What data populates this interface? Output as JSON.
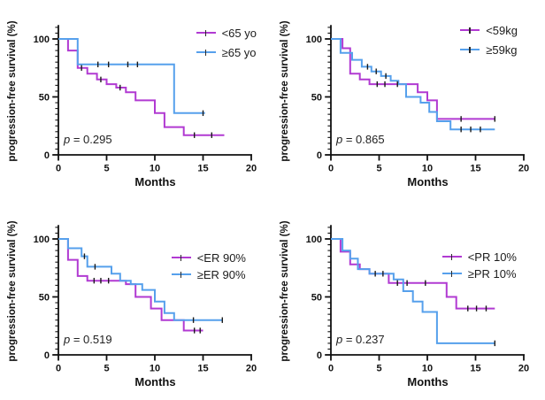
{
  "figure": {
    "description": "2x2 grid of Kaplan-Meier progression-free survival curves",
    "shared_xlabel": "Months",
    "shared_ylabel": "progression-free survival (%)",
    "colors": {
      "group_below": "#b13ad2",
      "group_above": "#56a0ec",
      "axis": "#111111"
    }
  },
  "chart_data": [
    {
      "type": "line",
      "subtype": "kaplan_meier_step",
      "group": "Age",
      "xlabel": "Months",
      "ylabel": "progression-free survival (%)",
      "p_label": "p = 0.295",
      "xlim": [
        0,
        20
      ],
      "ylim": [
        0,
        100
      ],
      "xticks": [
        0,
        5,
        10,
        15,
        20
      ],
      "yticks": [
        0,
        50,
        100
      ],
      "legend": [
        {
          "label": "<65 yo",
          "color": "#b13ad2"
        },
        {
          "label": "≥65 yo",
          "color": "#56a0ec"
        }
      ],
      "series": [
        {
          "name": "<65 yo",
          "color": "#b13ad2",
          "end_x": 17.2,
          "steps": [
            [
              0,
              100
            ],
            [
              1,
              90
            ],
            [
              2,
              75
            ],
            [
              3,
              70
            ],
            [
              4,
              65
            ],
            [
              5,
              61
            ],
            [
              6,
              58
            ],
            [
              7,
              54
            ],
            [
              8,
              47
            ],
            [
              10,
              36
            ],
            [
              11,
              24
            ],
            [
              13,
              17
            ]
          ],
          "censor_marks": [
            [
              2.4,
              75
            ],
            [
              4.4,
              65
            ],
            [
              6.4,
              58
            ],
            [
              14.1,
              17
            ],
            [
              15.9,
              17
            ]
          ]
        },
        {
          "name": "≥65 yo",
          "color": "#56a0ec",
          "end_x": 15.2,
          "steps": [
            [
              0,
              100
            ],
            [
              2,
              78
            ],
            [
              12,
              36
            ]
          ],
          "censor_marks": [
            [
              4.1,
              78
            ],
            [
              5.2,
              78
            ],
            [
              7.2,
              78
            ],
            [
              8.2,
              78
            ],
            [
              15,
              36
            ]
          ]
        }
      ]
    },
    {
      "type": "line",
      "subtype": "kaplan_meier_step",
      "group": "Weight",
      "xlabel": "Months",
      "ylabel": "progression-free survival (%)",
      "p_label": "p = 0.865",
      "xlim": [
        0,
        20
      ],
      "ylim": [
        0,
        100
      ],
      "xticks": [
        0,
        5,
        10,
        15,
        20
      ],
      "yticks": [
        0,
        50,
        100
      ],
      "legend": [
        {
          "label": "<59kg",
          "color": "#b13ad2"
        },
        {
          "label": "≥59kg",
          "color": "#56a0ec"
        }
      ],
      "series": [
        {
          "name": "<59kg",
          "color": "#b13ad2",
          "end_x": 17,
          "steps": [
            [
              0,
              100
            ],
            [
              1.2,
              92
            ],
            [
              2,
              70
            ],
            [
              3,
              65
            ],
            [
              4,
              61
            ],
            [
              9,
              54
            ],
            [
              10,
              47
            ],
            [
              11,
              31
            ]
          ],
          "censor_marks": [
            [
              4.8,
              61
            ],
            [
              5.6,
              61
            ],
            [
              6.9,
              61
            ],
            [
              13.5,
              31
            ],
            [
              17,
              31
            ]
          ]
        },
        {
          "name": "≥59kg",
          "color": "#56a0ec",
          "end_x": 17,
          "steps": [
            [
              0,
              100
            ],
            [
              1,
              88
            ],
            [
              2.2,
              82
            ],
            [
              3.2,
              76
            ],
            [
              4.2,
              72
            ],
            [
              5.2,
              68
            ],
            [
              6.2,
              64
            ],
            [
              7,
              61
            ],
            [
              7.8,
              50
            ],
            [
              9.3,
              45
            ],
            [
              10.2,
              37
            ],
            [
              11,
              29
            ],
            [
              12.4,
              22
            ]
          ],
          "censor_marks": [
            [
              3.8,
              76
            ],
            [
              4.7,
              72
            ],
            [
              5.7,
              68
            ],
            [
              13.5,
              22
            ],
            [
              14.5,
              22
            ],
            [
              15.5,
              22
            ]
          ]
        }
      ]
    },
    {
      "type": "line",
      "subtype": "kaplan_meier_step",
      "group": "ER",
      "xlabel": "Months",
      "ylabel": "progression-free survival (%)",
      "p_label": "p = 0.519",
      "xlim": [
        0,
        20
      ],
      "ylim": [
        0,
        100
      ],
      "xticks": [
        0,
        5,
        10,
        15,
        20
      ],
      "yticks": [
        0,
        50,
        100
      ],
      "legend": [
        {
          "label": "<ER 90%",
          "color": "#b13ad2"
        },
        {
          "label": "≥ER 90%",
          "color": "#56a0ec"
        }
      ],
      "series": [
        {
          "name": "<ER 90%",
          "color": "#b13ad2",
          "end_x": 15,
          "steps": [
            [
              0,
              100
            ],
            [
              1,
              82
            ],
            [
              2,
              68
            ],
            [
              3,
              64
            ],
            [
              7,
              61
            ],
            [
              8,
              50
            ],
            [
              9.6,
              40
            ],
            [
              10.7,
              30
            ],
            [
              13,
              21
            ]
          ],
          "censor_marks": [
            [
              3.7,
              64
            ],
            [
              4.4,
              64
            ],
            [
              5.2,
              64
            ],
            [
              14.1,
              21
            ],
            [
              14.7,
              21
            ]
          ]
        },
        {
          "name": "≥ER 90%",
          "color": "#56a0ec",
          "end_x": 17,
          "steps": [
            [
              0,
              100
            ],
            [
              1,
              92
            ],
            [
              2.4,
              85
            ],
            [
              3,
              76
            ],
            [
              5.5,
              70
            ],
            [
              6.4,
              64
            ],
            [
              7.5,
              61
            ],
            [
              8.7,
              56
            ],
            [
              10,
              46
            ],
            [
              11,
              36
            ],
            [
              12,
              30
            ]
          ],
          "censor_marks": [
            [
              2.7,
              85
            ],
            [
              3.8,
              76
            ],
            [
              14,
              30
            ],
            [
              17,
              30
            ]
          ]
        }
      ]
    },
    {
      "type": "line",
      "subtype": "kaplan_meier_step",
      "group": "PR",
      "xlabel": "Months",
      "ylabel": "progression-free survival (%)",
      "p_label": "p = 0.237",
      "xlim": [
        0,
        20
      ],
      "ylim": [
        0,
        100
      ],
      "xticks": [
        0,
        5,
        10,
        15,
        20
      ],
      "yticks": [
        0,
        50,
        100
      ],
      "legend": [
        {
          "label": "<PR 10%",
          "color": "#b13ad2"
        },
        {
          "label": "≥PR 10%",
          "color": "#56a0ec"
        }
      ],
      "series": [
        {
          "name": "<PR 10%",
          "color": "#b13ad2",
          "end_x": 17,
          "steps": [
            [
              0,
              100
            ],
            [
              1,
              89
            ],
            [
              2,
              78
            ],
            [
              3,
              74
            ],
            [
              4,
              70
            ],
            [
              6,
              62
            ],
            [
              12,
              50
            ],
            [
              13,
              40
            ]
          ],
          "censor_marks": [
            [
              4.6,
              70
            ],
            [
              6.9,
              62
            ],
            [
              7.9,
              62
            ],
            [
              9.8,
              62
            ],
            [
              14.2,
              40
            ],
            [
              15.1,
              40
            ],
            [
              16.1,
              40
            ]
          ]
        },
        {
          "name": "≥PR 10%",
          "color": "#56a0ec",
          "end_x": 17,
          "steps": [
            [
              0,
              100
            ],
            [
              1.2,
              90
            ],
            [
              2,
              83
            ],
            [
              2.8,
              74
            ],
            [
              4,
              70
            ],
            [
              6.5,
              65
            ],
            [
              7.5,
              55
            ],
            [
              8.5,
              46
            ],
            [
              9.5,
              37
            ],
            [
              11,
              10
            ]
          ],
          "censor_marks": [
            [
              5.4,
              70
            ],
            [
              17,
              10
            ]
          ]
        }
      ]
    }
  ]
}
